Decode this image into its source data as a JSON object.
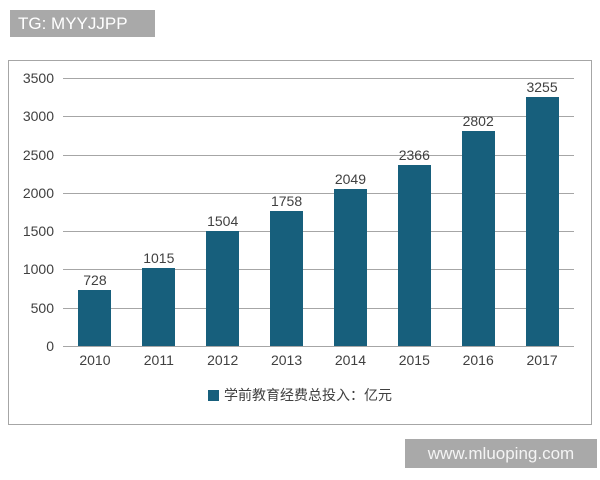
{
  "watermarks": {
    "top": "TG: MYYJJPP",
    "bottom": "www.mluoping.com"
  },
  "chart_data": {
    "type": "bar",
    "categories": [
      "2010",
      "2011",
      "2012",
      "2013",
      "2014",
      "2015",
      "2016",
      "2017"
    ],
    "values": [
      728,
      1015,
      1504,
      1758,
      2049,
      2366,
      2802,
      3255
    ],
    "title": "",
    "xlabel": "",
    "ylabel": "",
    "ylim": [
      0,
      3500
    ],
    "yticks": [
      0,
      500,
      1000,
      1500,
      2000,
      2500,
      3000,
      3500
    ],
    "grid": true,
    "legend_position": "bottom",
    "legend": "学前教育经费总投入：亿元",
    "colors": {
      "bar": "#175F7C",
      "gridline": "#A6A6A6",
      "frame_border": "#A6A6A6",
      "label_text": "#404040",
      "watermark_bg": "#A9A9A9",
      "watermark_text": "#FFFFFF"
    }
  }
}
